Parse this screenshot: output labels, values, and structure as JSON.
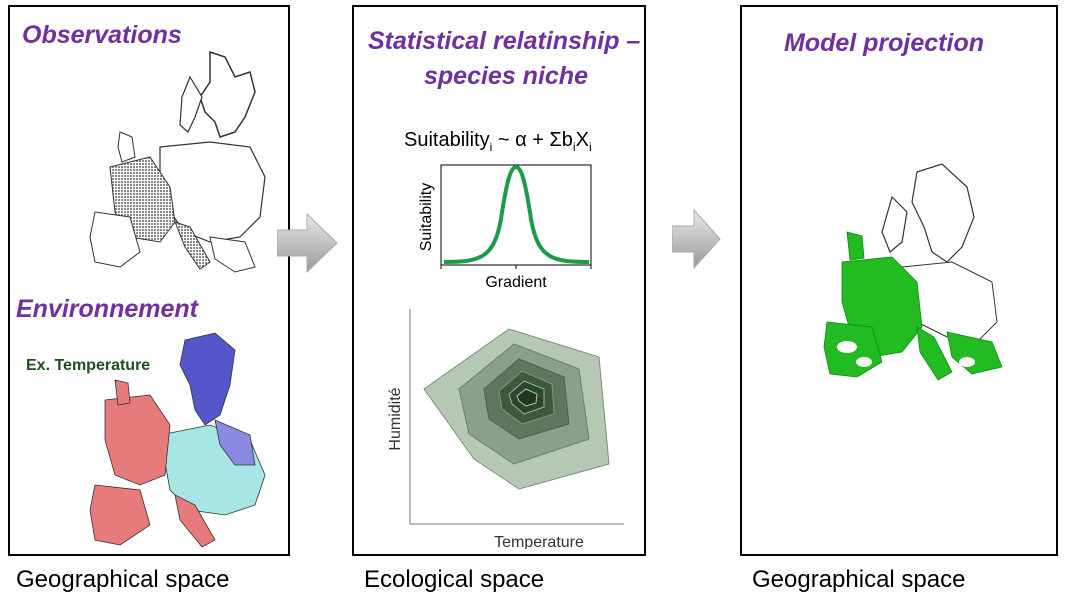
{
  "panels": {
    "left": {
      "title_top": "Observations",
      "title_bottom": "Environnement",
      "map_label": "Ex. Temperature",
      "caption": "Geographical space"
    },
    "middle": {
      "title_line1": "Statistical relatinship –",
      "title_line2": "species niche",
      "formula_main": "Suitability",
      "formula_sub_i": "i",
      "formula_op": " ~ α + Σb",
      "formula_x": "X",
      "curve_ylabel": "Suitability",
      "curve_xlabel": "Gradient",
      "niche_ylabel": "Humidité",
      "niche_xlabel": "Temperature",
      "caption": "Ecological space"
    },
    "right": {
      "title": "Model projection",
      "caption": "Geographical space"
    }
  },
  "colors": {
    "title": "#7030a0",
    "curve": "#1e9b48",
    "projection": "#22bb22",
    "warm": "#e77b7b",
    "cold": "#5555cc",
    "mid": "#a8e6e6",
    "label_green": "#1f4e1f"
  }
}
